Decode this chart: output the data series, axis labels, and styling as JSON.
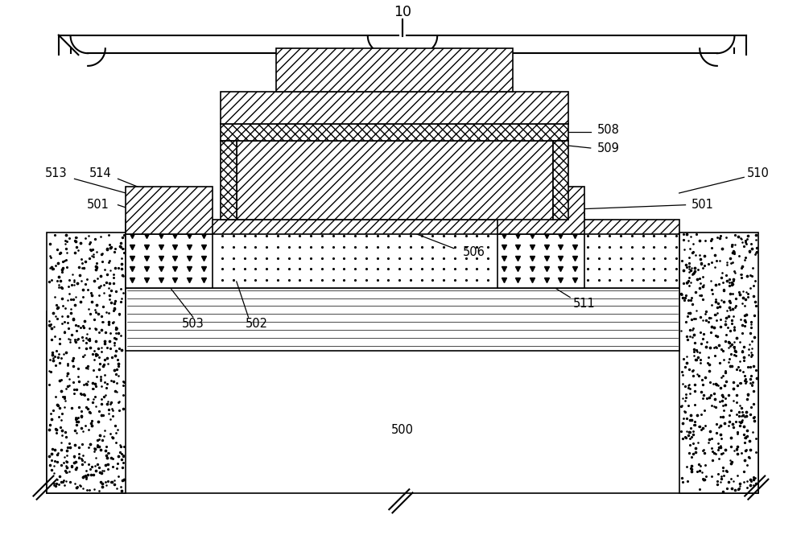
{
  "bg_color": "#ffffff",
  "figsize": [
    10.0,
    6.65
  ],
  "dpi": 100,
  "lw": 1.2,
  "fs": 10.5
}
